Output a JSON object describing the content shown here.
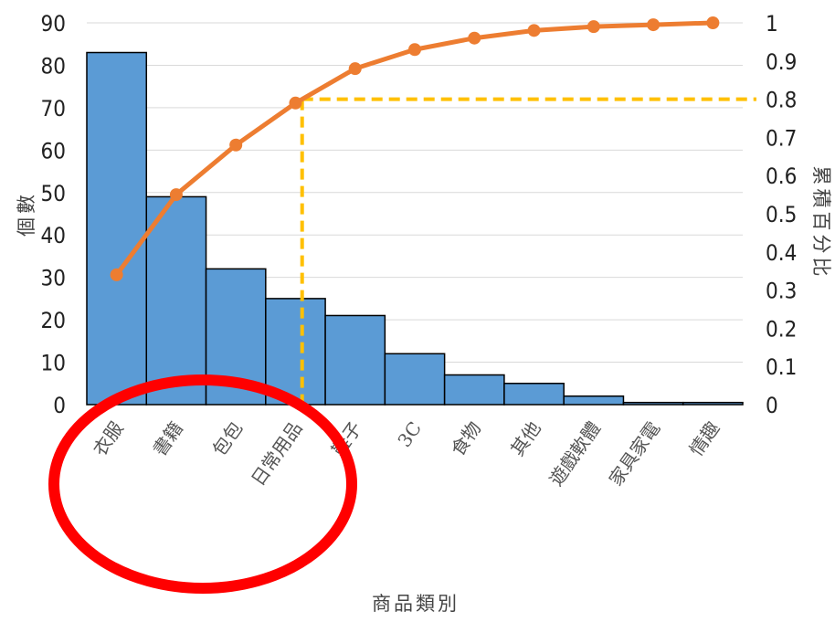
{
  "chart_data": {
    "type": "bar",
    "categories": [
      "衣服",
      "書籍",
      "包包",
      "日常用品",
      "鞋子",
      "3C",
      "食物",
      "其他",
      "遊戲軟體",
      "家具家電",
      "情趣"
    ],
    "series": [
      {
        "type": "bar",
        "values": [
          83,
          49,
          32,
          25,
          21,
          12,
          7,
          5,
          2,
          0.5,
          0.5
        ]
      },
      {
        "type": "line",
        "axis": "right",
        "values": [
          0.34,
          0.55,
          0.68,
          0.79,
          0.88,
          0.93,
          0.96,
          0.98,
          0.99,
          0.995,
          1.0
        ]
      }
    ],
    "xlabel": "商品類別",
    "ylabel": "個數",
    "ylabel_right": "累積百分比",
    "ylim": [
      0,
      90
    ],
    "ylim_right": [
      0,
      1
    ],
    "yticks": [
      "0",
      "10",
      "20",
      "30",
      "40",
      "50",
      "60",
      "70",
      "80",
      "90"
    ],
    "yticks_right": [
      "0",
      "0.1",
      "0.2",
      "0.3",
      "0.4",
      "0.5",
      "0.6",
      "0.7",
      "0.8",
      "0.9",
      "1"
    ],
    "reference_level": 0.8,
    "grid": true,
    "colors": {
      "bar": "#5b9bd5",
      "bar_edge": "#000000",
      "line": "#ed7d31",
      "reference": "#ffc000",
      "highlight": "#ff0000"
    }
  }
}
